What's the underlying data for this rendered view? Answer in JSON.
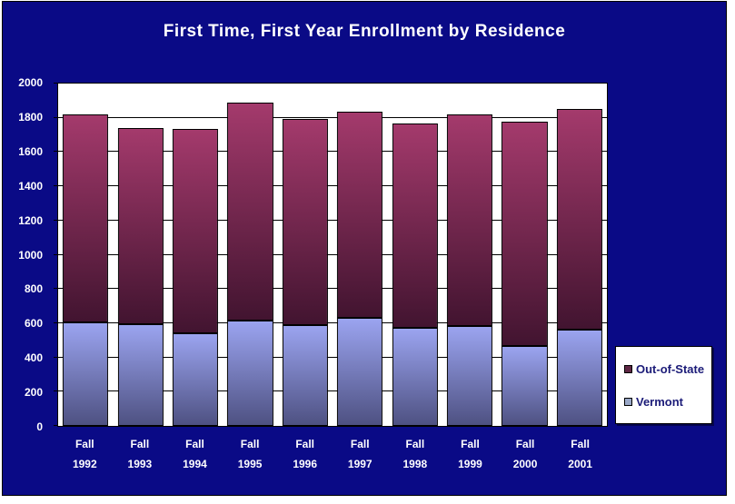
{
  "chart": {
    "background": "#0a0a86",
    "plot_background": "#ffffff",
    "title_color": "#ffffff",
    "axis_label_color": "#ffffff"
  },
  "chart_data": {
    "type": "bar",
    "stacked": true,
    "title": "First Time, First Year Enrollment by Residence",
    "category_prefix": "Fall",
    "categories": [
      "1992",
      "1993",
      "1994",
      "1995",
      "1996",
      "1997",
      "1998",
      "1999",
      "2000",
      "2001"
    ],
    "series": [
      {
        "name": "Vermont",
        "color_top": "#9ba4f0",
        "color_bottom": "#4e5182",
        "values": [
          605,
          595,
          540,
          615,
          590,
          630,
          575,
          585,
          465,
          560
        ]
      },
      {
        "name": "Out-of-State",
        "color_top": "#a43a6c",
        "color_bottom": "#421430",
        "values": [
          1215,
          1145,
          1195,
          1275,
          1205,
          1205,
          1190,
          1235,
          1310,
          1290
        ]
      }
    ],
    "totals": [
      1820,
      1740,
      1735,
      1890,
      1795,
      1835,
      1765,
      1820,
      1775,
      1850
    ],
    "ylim": [
      0,
      2000
    ],
    "ytick_step": 200,
    "grid": true,
    "legend_position": "right",
    "legend": [
      {
        "label": "Out-of-State",
        "swatch": "#5e2744"
      },
      {
        "label": "Vermont",
        "swatch": "#9aa8c8"
      }
    ]
  }
}
